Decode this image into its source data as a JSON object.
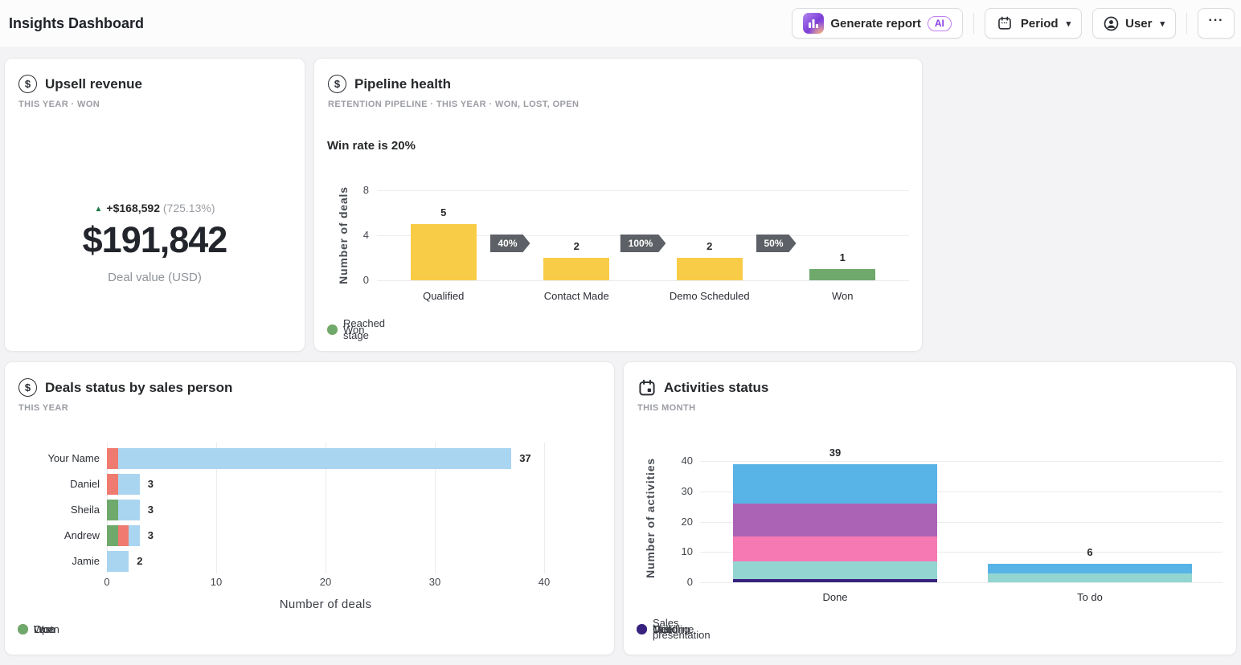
{
  "header": {
    "title": "Insights Dashboard",
    "generate_report": {
      "label": "Generate report",
      "badge": "AI"
    },
    "period_label": "Period",
    "user_label": "User",
    "more_label": "···",
    "chevron": "▾"
  },
  "cards": {
    "upsell": {
      "title": "Upsell revenue",
      "subtitle": "THIS YEAR  ·  WON",
      "delta_icon": "▲",
      "delta": "+$168,592",
      "delta_pct": "(725.13%)",
      "value": "$191,842",
      "caption": "Deal value (USD)"
    },
    "pipeline": {
      "title": "Pipeline health",
      "subtitle": "RETENTION PIPELINE  ·  THIS YEAR  ·  WON, LOST, OPEN",
      "win_rate": "Win rate is 20%"
    },
    "deals": {
      "title": "Deals status by sales person",
      "subtitle": "THIS YEAR"
    },
    "activities": {
      "title": "Activities status",
      "subtitle": "THIS MONTH"
    }
  },
  "colors": {
    "reached_stage_yellow": "#F9CC47",
    "won_green": "#6FA96B",
    "open_blue": "#A9D5F1",
    "lost_red": "#EF7B70",
    "call_blue": "#58B3E6",
    "task_purple": "#AB63B5",
    "deadline_pink": "#F779B3",
    "meeting_teal": "#93D6D1",
    "sales_presentation_indigo": "#39227F",
    "badge_gray": "#5D6066",
    "ai_purple": "#8D3FE8",
    "delta_green": "#1D7A43"
  },
  "chart_data": [
    {
      "id": "pipeline_funnel",
      "type": "bar",
      "title": "Pipeline health funnel",
      "categories": [
        "Qualified",
        "Contact Made",
        "Demo Scheduled",
        "Won"
      ],
      "values": [
        5,
        2,
        2,
        1
      ],
      "bar_colors": [
        "#F9CC47",
        "#F9CC47",
        "#F9CC47",
        "#6FA96B"
      ],
      "conversions": [
        "40%",
        "100%",
        "50%"
      ],
      "ylabel": "Number of deals",
      "yticks": [
        0,
        4,
        8
      ],
      "ylim": [
        0,
        8
      ],
      "grid": true,
      "legend": [
        {
          "label": "Reached stage",
          "color": "#F9CC47"
        },
        {
          "label": "Won",
          "color": "#6FA96B"
        }
      ]
    },
    {
      "id": "deals_by_person",
      "type": "bar",
      "orientation": "horizontal",
      "stacked": true,
      "title": "Deals status by sales person",
      "categories": [
        "Your Name",
        "Daniel",
        "Sheila",
        "Andrew",
        "Jamie"
      ],
      "series": [
        {
          "name": "Won",
          "color": "#6FA96B",
          "values": [
            0,
            0,
            1,
            1,
            0
          ]
        },
        {
          "name": "Lost",
          "color": "#EF7B70",
          "values": [
            1,
            1,
            0,
            1,
            0
          ]
        },
        {
          "name": "Open",
          "color": "#A9D5F1",
          "values": [
            36,
            2,
            2,
            1,
            2
          ]
        }
      ],
      "totals": [
        37,
        3,
        3,
        3,
        2
      ],
      "xlabel": "Number of deals",
      "xticks": [
        0,
        10,
        20,
        30,
        40
      ],
      "xlim": [
        0,
        40
      ],
      "grid": true,
      "legend": [
        {
          "label": "Open",
          "color": "#A9D5F1"
        },
        {
          "label": "Lost",
          "color": "#EF7B70"
        },
        {
          "label": "Won",
          "color": "#6FA96B"
        }
      ]
    },
    {
      "id": "activities_status",
      "type": "bar",
      "stacked": true,
      "title": "Activities status",
      "categories": [
        "Done",
        "To do"
      ],
      "series": [
        {
          "name": "Sales presentation",
          "color": "#39227F",
          "values": [
            1,
            0
          ]
        },
        {
          "name": "Meeting",
          "color": "#93D6D1",
          "values": [
            6,
            3
          ]
        },
        {
          "name": "Deadline",
          "color": "#F779B3",
          "values": [
            8,
            0
          ]
        },
        {
          "name": "Task",
          "color": "#AB63B5",
          "values": [
            11,
            0
          ]
        },
        {
          "name": "Call",
          "color": "#58B3E6",
          "values": [
            13,
            3
          ]
        }
      ],
      "totals": [
        39,
        6
      ],
      "ylabel": "Number of activities",
      "yticks": [
        0,
        10,
        20,
        30,
        40
      ],
      "ylim": [
        0,
        40
      ],
      "grid": true,
      "legend": [
        {
          "label": "Call",
          "color": "#58B3E6"
        },
        {
          "label": "Task",
          "color": "#AB63B5"
        },
        {
          "label": "Deadline",
          "color": "#F779B3"
        },
        {
          "label": "Meeting",
          "color": "#93D6D1"
        },
        {
          "label": "Sales presentation",
          "color": "#39227F"
        }
      ]
    }
  ]
}
